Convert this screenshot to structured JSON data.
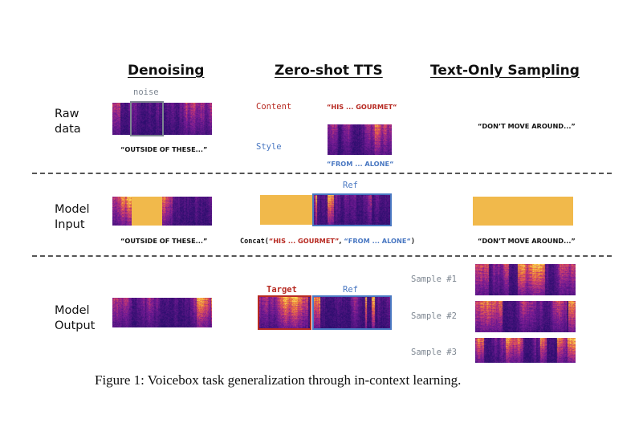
{
  "columns": {
    "denoising": "Denoising",
    "zero_shot": "Zero-shot TTS",
    "text_only": "Text-Only Sampling"
  },
  "rows": {
    "raw_data": {
      "line1": "Raw",
      "line2": "data"
    },
    "model_input": {
      "line1": "Model",
      "line2": "Input"
    },
    "model_output": {
      "line1": "Model",
      "line2": "Output"
    }
  },
  "denoising": {
    "noise_label": "noise",
    "raw_quote": "“OUTSIDE OF THESE...”",
    "input_quote": "“OUTSIDE OF THESE...”"
  },
  "zero_shot": {
    "content_label": "Content",
    "style_label": "Style",
    "content_quote": "“HIS ... GOURMET“",
    "style_quote": "“FROM ... ALONE“",
    "ref_label": "Ref",
    "concat": {
      "prefix": "Concat(",
      "content": "“HIS ... GOURMET”",
      "sep": ", ",
      "style": "“FROM ... ALONE“",
      "suffix": ")"
    },
    "target_label": "Target",
    "ref_label_output": "Ref"
  },
  "text_only": {
    "raw_quote": "“DON’T MOVE AROUND...”",
    "input_quote": "“DON’T MOVE AROUND...”",
    "samples": [
      "Sample #1",
      "Sample #2",
      "Sample #3"
    ]
  },
  "caption": "Figure 1: Voicebox task generalization through in-context learning.",
  "colors": {
    "content_red": "#b72a22",
    "style_blue": "#4a78c2",
    "noise_gray": "#7d8691",
    "mask_yellow": "#f1b94b"
  }
}
